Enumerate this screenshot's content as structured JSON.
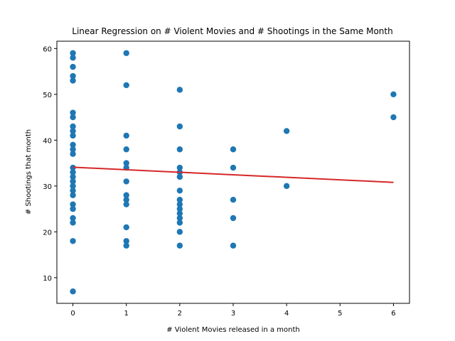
{
  "chart_data": {
    "type": "scatter",
    "title": "Linear Regression on # Violent Movies and # Shootings in the Same Month",
    "xlabel": "# Violent Movies released in a month",
    "ylabel": "# Shootings that month",
    "xlim": [
      -0.3,
      6.3
    ],
    "ylim": [
      4.4,
      61.6
    ],
    "xticks": [
      0,
      1,
      2,
      3,
      4,
      5,
      6
    ],
    "yticks": [
      10,
      20,
      30,
      40,
      50,
      60
    ],
    "grid": false,
    "point_color": "#1f77b4",
    "line_color": "#d62728",
    "points": [
      [
        0,
        59
      ],
      [
        0,
        58
      ],
      [
        0,
        56
      ],
      [
        0,
        54
      ],
      [
        0,
        53
      ],
      [
        0,
        46
      ],
      [
        0,
        45
      ],
      [
        0,
        43
      ],
      [
        0,
        42
      ],
      [
        0,
        41
      ],
      [
        0,
        39
      ],
      [
        0,
        38
      ],
      [
        0,
        37
      ],
      [
        0,
        34
      ],
      [
        0,
        33
      ],
      [
        0,
        32
      ],
      [
        0,
        31
      ],
      [
        0,
        30
      ],
      [
        0,
        29
      ],
      [
        0,
        28
      ],
      [
        0,
        26
      ],
      [
        0,
        25
      ],
      [
        0,
        23
      ],
      [
        0,
        22
      ],
      [
        0,
        18
      ],
      [
        0,
        7
      ],
      [
        1,
        59
      ],
      [
        1,
        52
      ],
      [
        1,
        41
      ],
      [
        1,
        38
      ],
      [
        1,
        35
      ],
      [
        1,
        34
      ],
      [
        1,
        31
      ],
      [
        1,
        28
      ],
      [
        1,
        27
      ],
      [
        1,
        26
      ],
      [
        1,
        21
      ],
      [
        1,
        18
      ],
      [
        1,
        17
      ],
      [
        2,
        51
      ],
      [
        2,
        43
      ],
      [
        2,
        38
      ],
      [
        2,
        34
      ],
      [
        2,
        33
      ],
      [
        2,
        32
      ],
      [
        2,
        29
      ],
      [
        2,
        27
      ],
      [
        2,
        26
      ],
      [
        2,
        25
      ],
      [
        2,
        24
      ],
      [
        2,
        23
      ],
      [
        2,
        22
      ],
      [
        2,
        20
      ],
      [
        2,
        17
      ],
      [
        3,
        38
      ],
      [
        3,
        34
      ],
      [
        3,
        27
      ],
      [
        3,
        23
      ],
      [
        3,
        17
      ],
      [
        4,
        42
      ],
      [
        4,
        30
      ],
      [
        6,
        50
      ],
      [
        6,
        45
      ]
    ],
    "regression": {
      "x": [
        0,
        6
      ],
      "y": [
        34.1,
        30.8
      ]
    }
  }
}
